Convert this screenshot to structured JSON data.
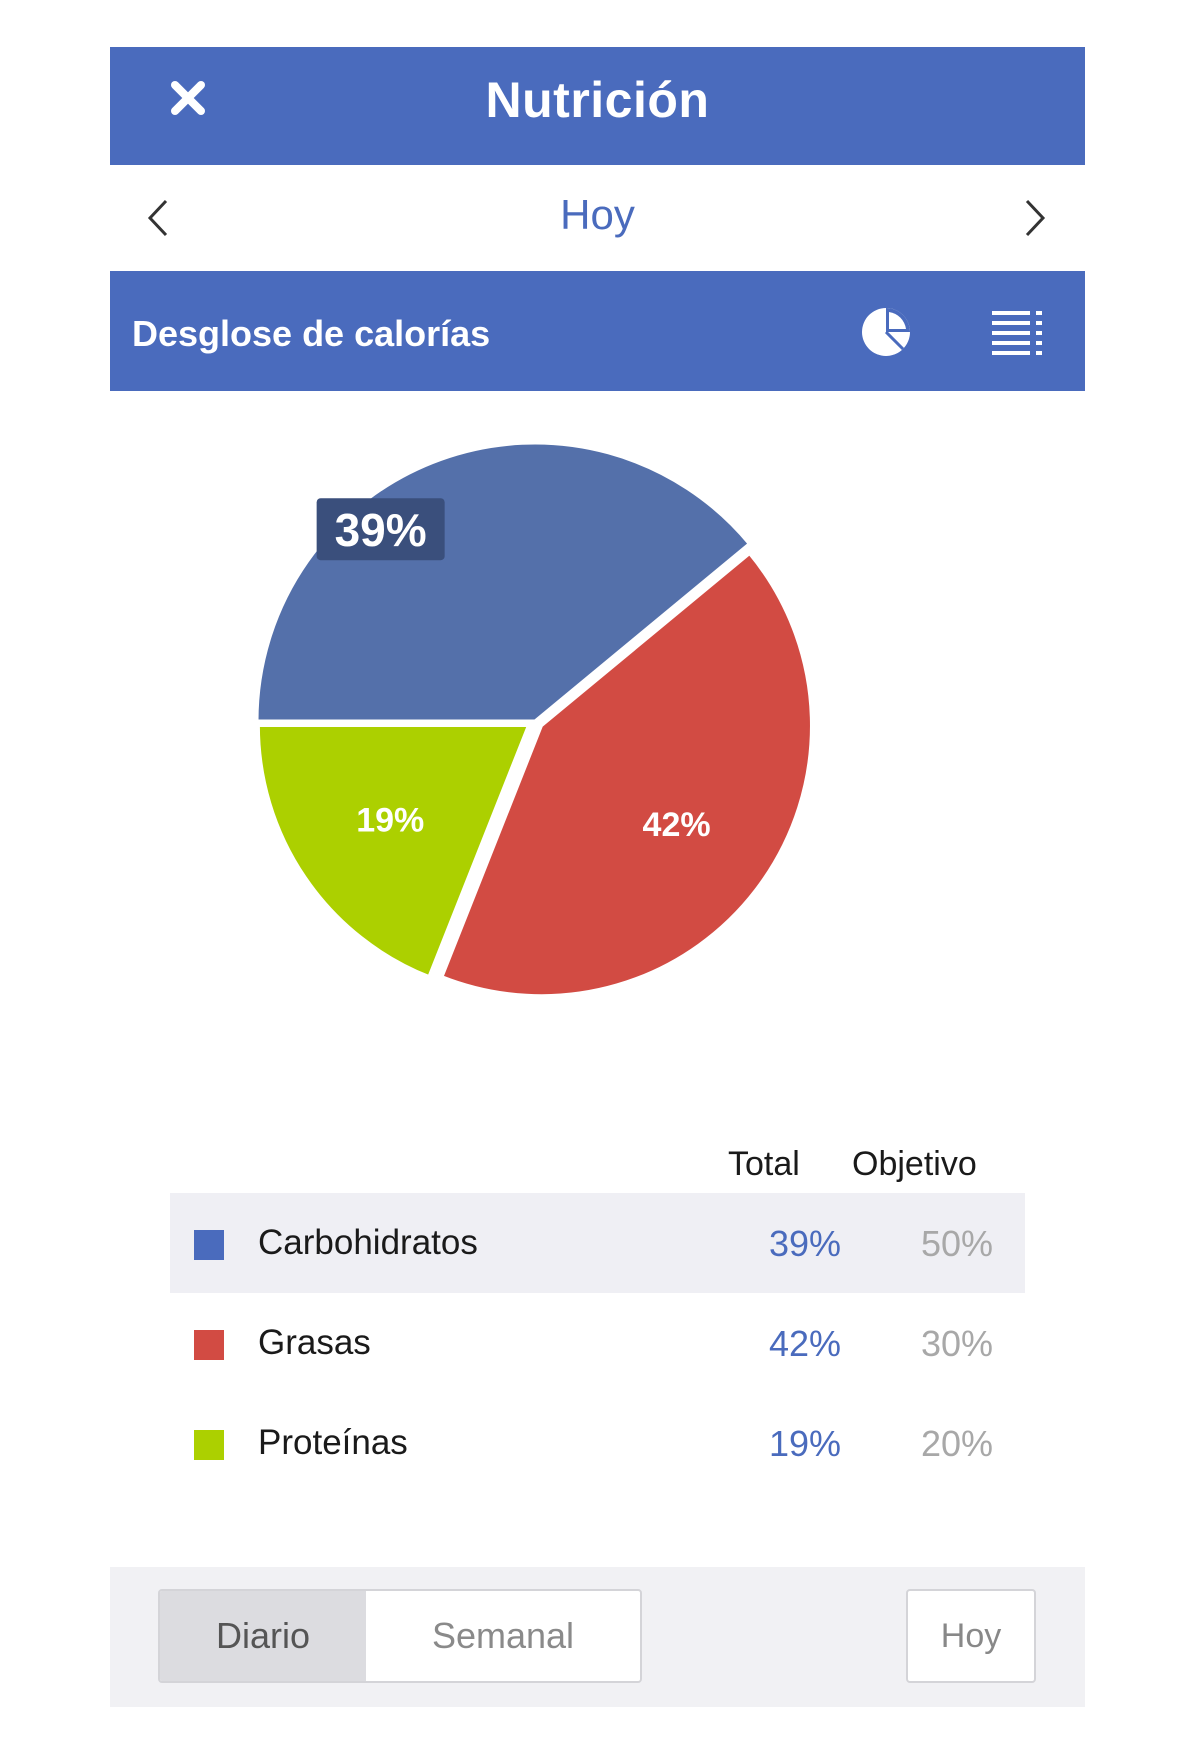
{
  "header": {
    "title": "Nutrición",
    "close_icon": "close-icon"
  },
  "datebar": {
    "day": "Hoy"
  },
  "section": {
    "label": "Desglose de calorías"
  },
  "chart_data": {
    "type": "pie",
    "slices": [
      {
        "name": "Carbohidratos",
        "value": 39,
        "label": "39%",
        "color": "#5470aa"
      },
      {
        "name": "Grasas",
        "value": 42,
        "label": "42%",
        "color": "#d24b43"
      },
      {
        "name": "Proteínas",
        "value": 19,
        "label": "19%",
        "color": "#acd000"
      }
    ],
    "highlighted": "Carbohidratos"
  },
  "legend": {
    "total_header": "Total",
    "goal_header": "Objetivo",
    "rows": [
      {
        "name": "Carbohidratos",
        "total": "39%",
        "goal": "50%",
        "color": "#4a6bbd"
      },
      {
        "name": "Grasas",
        "total": "42%",
        "goal": "30%",
        "color": "#d24b43"
      },
      {
        "name": "Proteínas",
        "total": "19%",
        "goal": "20%",
        "color": "#acd000"
      }
    ]
  },
  "footer": {
    "daily": "Diario",
    "weekly": "Semanal",
    "today": "Hoy"
  }
}
